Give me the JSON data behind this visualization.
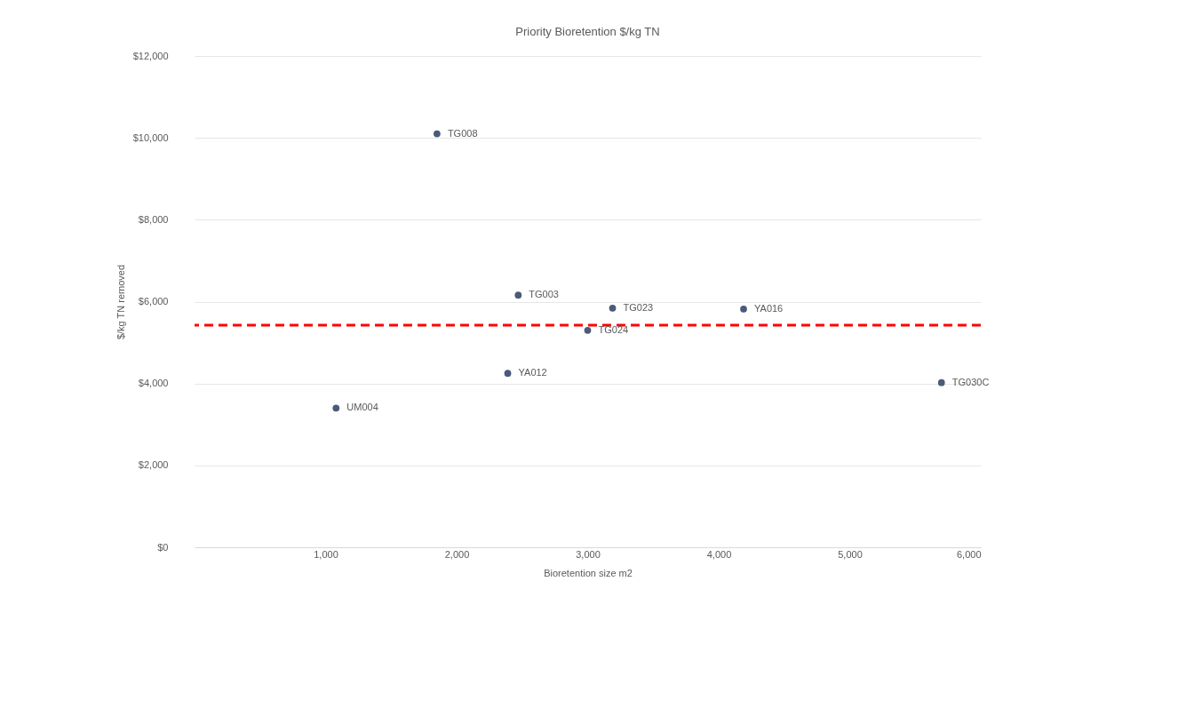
{
  "chart_data": {
    "type": "scatter",
    "title": "Priority Bioretention $/kg TN",
    "xlabel": "Bioretention size m2",
    "ylabel": "$/kg TN removed",
    "x": [
      1850,
      1080,
      2390,
      2470,
      3000,
      3190,
      4190,
      5700
    ],
    "series": [
      {
        "color": "#4a5a7a",
        "values": [
          10100,
          3400,
          4250,
          6160,
          5300,
          5840,
          5820,
          4020
        ]
      }
    ],
    "xlim": [
      0,
      6000
    ],
    "xticks": [
      {
        "value": 1000,
        "label": "1,000"
      },
      {
        "value": 2000,
        "label": "2,000"
      },
      {
        "value": 3000,
        "label": "3,000"
      },
      {
        "value": 4000,
        "label": "4,000"
      },
      {
        "value": 5000,
        "label": "5,000"
      },
      {
        "value": 6000,
        "label": "6,000"
      }
    ],
    "ylim": [
      0,
      12000
    ],
    "yticks": [
      {
        "value": 0,
        "label": "$0"
      },
      {
        "value": 2000,
        "label": "$2,000"
      },
      {
        "value": 4000,
        "label": "$4,000"
      },
      {
        "value": 6000,
        "label": "$6,000"
      },
      {
        "value": 8000,
        "label": "$8,000"
      },
      {
        "value": 10000,
        "label": "$10,000"
      },
      {
        "value": 12000,
        "label": "$12,000"
      }
    ],
    "grid": "y",
    "marker": "circle",
    "ref_lines": [
      {
        "axis": "y",
        "value": 5425,
        "color": "#ff0000",
        "line_style": "dashed"
      }
    ],
    "annotations": [
      {
        "text": "TG008",
        "x": 1850,
        "y": 10100
      },
      {
        "text": "UM004",
        "x": 1080,
        "y": 3400
      },
      {
        "text": "YA012",
        "x": 2390,
        "y": 4250
      },
      {
        "text": "TG003",
        "x": 2470,
        "y": 6160
      },
      {
        "text": "TG024",
        "x": 3000,
        "y": 5300
      },
      {
        "text": "TG023",
        "x": 3190,
        "y": 5840
      },
      {
        "text": "YA016",
        "x": 4190,
        "y": 5820
      },
      {
        "text": "TG030C",
        "x": 5700,
        "y": 4020
      }
    ]
  }
}
